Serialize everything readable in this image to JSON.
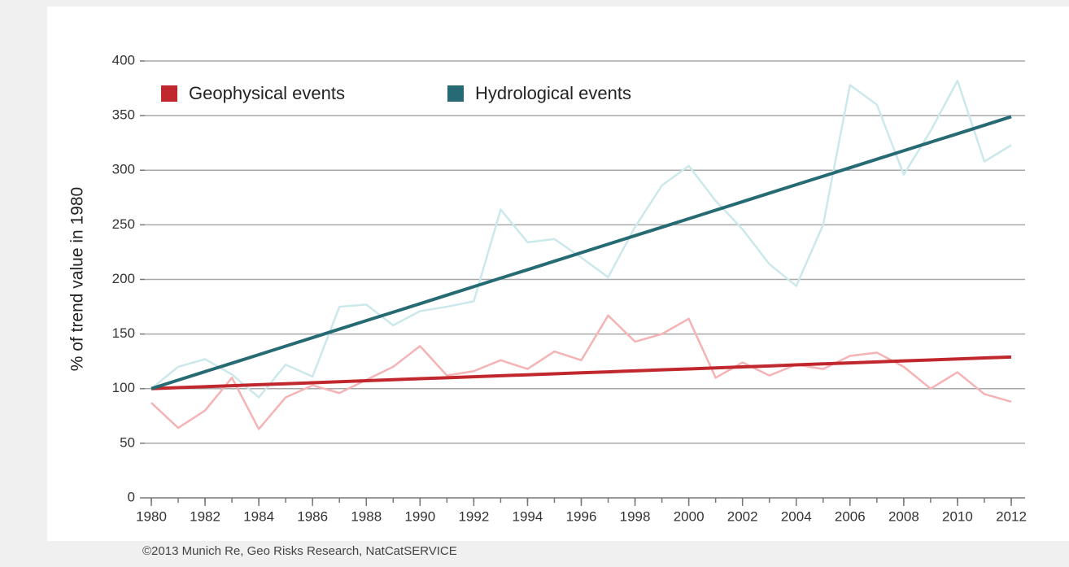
{
  "chart_data": {
    "type": "line",
    "y_label": "% of trend value in 1980",
    "source": "©2013 Munich Re, Geo Risks Research, NatCatSERVICE",
    "x": [
      1980,
      1981,
      1982,
      1983,
      1984,
      1985,
      1986,
      1987,
      1988,
      1989,
      1990,
      1991,
      1992,
      1993,
      1994,
      1995,
      1996,
      1997,
      1998,
      1999,
      2000,
      2001,
      2002,
      2003,
      2004,
      2005,
      2006,
      2007,
      2008,
      2009,
      2010,
      2011,
      2012
    ],
    "xlim": [
      1980,
      2012
    ],
    "xticks": [
      1980,
      1982,
      1984,
      1986,
      1988,
      1990,
      1992,
      1994,
      1996,
      1998,
      2000,
      2002,
      2004,
      2006,
      2008,
      2010,
      2012
    ],
    "ylim": [
      0,
      400
    ],
    "yticks": [
      0,
      50,
      100,
      150,
      200,
      250,
      300,
      350,
      400
    ],
    "grid": true,
    "legend": "top-left",
    "series": [
      {
        "name": "Geophysical events",
        "color": "#c0282d",
        "annual_color": "#f4b3b5",
        "values": [
          87,
          64,
          80,
          110,
          63,
          92,
          103,
          96,
          108,
          120,
          139,
          112,
          116,
          126,
          118,
          134,
          126,
          167,
          143,
          150,
          164,
          110,
          124,
          112,
          122,
          118,
          130,
          133,
          120,
          100,
          115,
          95,
          88
        ],
        "trend": [
          100,
          100.9,
          101.8,
          102.7,
          103.6,
          104.5,
          105.4,
          106.3,
          107.3,
          108.2,
          109.1,
          110.0,
          110.9,
          111.8,
          112.7,
          113.6,
          114.5,
          115.4,
          116.3,
          117.2,
          118.1,
          119.0,
          119.9,
          120.8,
          121.8,
          122.7,
          123.6,
          124.5,
          125.4,
          126.3,
          127.2,
          128.1,
          129.0
        ]
      },
      {
        "name": "Hydrological events",
        "color": "#266a73",
        "annual_color": "#cbe8eb",
        "values": [
          100,
          120,
          127,
          113,
          92,
          122,
          111,
          175,
          177,
          158,
          171,
          175,
          180,
          264,
          234,
          237,
          220,
          202,
          248,
          286,
          304,
          272,
          246,
          214,
          194,
          250,
          378,
          360,
          296,
          336,
          382,
          308,
          323
        ],
        "trend": [
          100,
          107.8,
          115.6,
          123.3,
          131.1,
          138.9,
          146.7,
          154.5,
          162.3,
          170.0,
          177.8,
          185.6,
          193.4,
          201.2,
          208.9,
          216.7,
          224.5,
          232.3,
          240.1,
          247.8,
          255.6,
          263.4,
          271.2,
          279.0,
          286.8,
          294.5,
          302.3,
          310.1,
          317.9,
          325.7,
          333.4,
          341.2,
          349.0
        ]
      }
    ]
  }
}
